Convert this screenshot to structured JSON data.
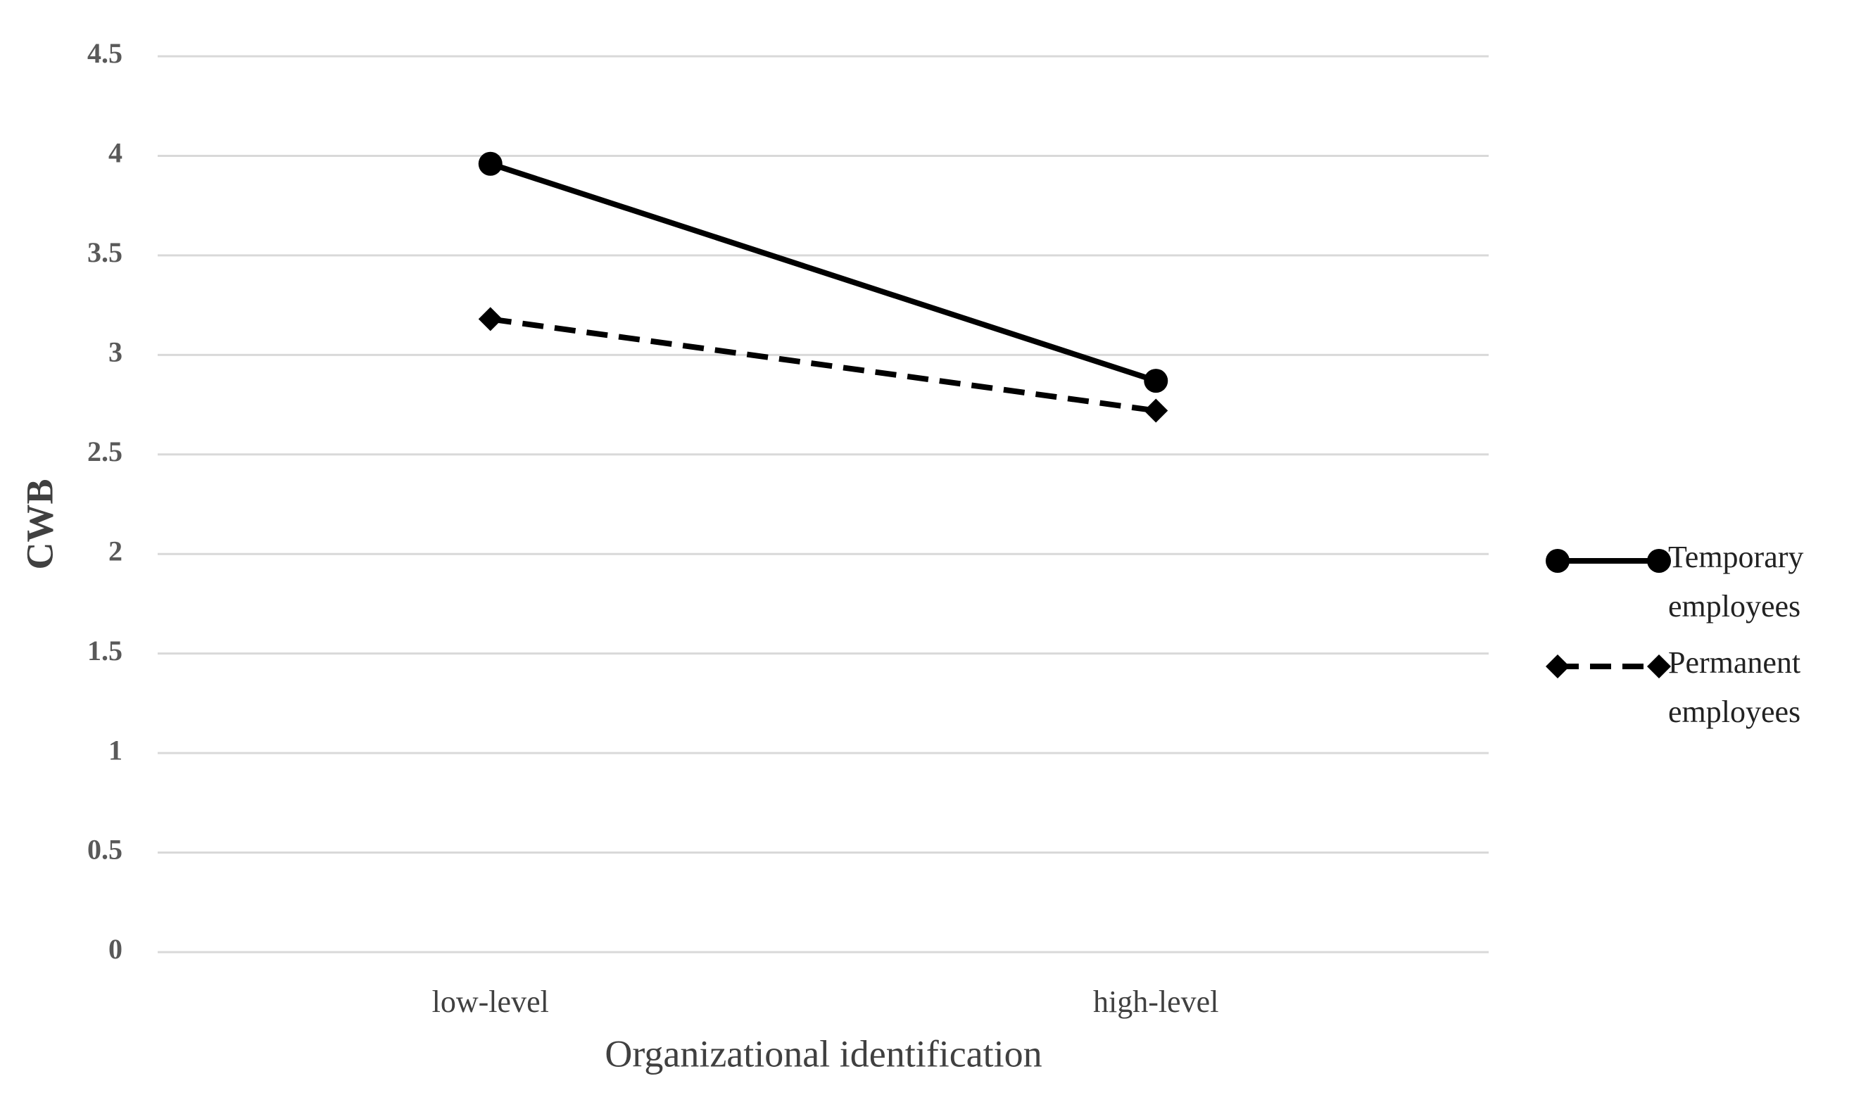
{
  "chart_data": {
    "type": "line",
    "x_label": "Organizational identification",
    "y_label": "CWB",
    "categories": [
      "low-level",
      "high-level"
    ],
    "series": [
      {
        "name": "Temporary employees",
        "color": "#000000",
        "marker": "circle",
        "line_style": "solid",
        "values": [
          3.96,
          2.87
        ]
      },
      {
        "name": "Permanent employees",
        "color": "#000000",
        "marker": "diamond",
        "line_style": "dashed",
        "values": [
          3.18,
          2.72
        ]
      }
    ],
    "ylim": [
      0,
      4.5
    ],
    "yticks": [
      0,
      0.5,
      1,
      1.5,
      2,
      2.5,
      3,
      3.5,
      4,
      4.5
    ],
    "grid": true,
    "legend": "right"
  }
}
